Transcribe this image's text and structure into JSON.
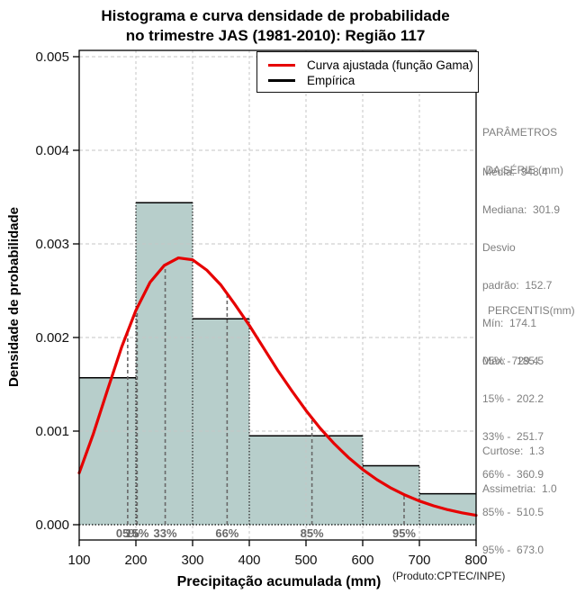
{
  "title": {
    "line1": "Histograma e curva densidade de probabilidade",
    "line2": "no trimestre JAS (1981-2010): Região 117"
  },
  "axes": {
    "ylabel": "Densidade de probabilidade",
    "xlabel": "Precipitação acumulada (mm)",
    "product_note": "(Produto:CPTEC/INPE)"
  },
  "legend": {
    "items": [
      {
        "label": "Curva ajustada (função Gama)",
        "color": "#e60000"
      },
      {
        "label": "Empírica",
        "color": "#000000"
      }
    ]
  },
  "sidebar": {
    "params_title_line1": "PARÂMETROS",
    "params_title_line2": " DA SÉRIE (mm)",
    "params_lines": [
      "Média:  348.4",
      "Mediana:  301.9",
      "Desvio",
      "padrão:  152.7",
      "Mín:  174.1",
      "Máx:  729.4"
    ],
    "percentis_title": "PERCENTIS(mm)",
    "percentile_lines": [
      "05% -  185.5",
      "15% -  202.2",
      "33% -  251.7",
      "66% -  360.9",
      "85% -  510.5",
      "95% -  673.0"
    ],
    "curtose_line": "Curtose:  1.3",
    "assimetria_line": "Assimetria:  1.0"
  },
  "chart_data": {
    "type": "bar",
    "subtype": "histogram-with-density-curve",
    "title": "Histograma e curva densidade de probabilidade no trimestre JAS (1981-2010): Região 117",
    "xlabel": "Precipitação acumulada (mm)",
    "ylabel": "Densidade de probabilidade",
    "xlim": [
      100,
      800
    ],
    "ylim": [
      0,
      0.005
    ],
    "grid": true,
    "legend_position": "top-right",
    "x_ticks": [
      100,
      200,
      300,
      400,
      500,
      600,
      700,
      800
    ],
    "y_ticks": [
      0.0,
      0.001,
      0.002,
      0.003,
      0.004,
      0.005
    ],
    "y_tick_labels": [
      "0.000",
      "0.001",
      "0.002",
      "0.003",
      "0.004",
      "0.005"
    ],
    "bar_fill": "#b7cecb",
    "curve_color": "#e60000",
    "grid_color": "#c6c6c6",
    "percentile_color": "#696969",
    "bars": [
      {
        "x0": 100,
        "x1": 200,
        "density": 0.00157
      },
      {
        "x0": 200,
        "x1": 300,
        "density": 0.00344
      },
      {
        "x0": 300,
        "x1": 400,
        "density": 0.0022
      },
      {
        "x0": 400,
        "x1": 600,
        "density": 0.00095
      },
      {
        "x0": 600,
        "x1": 700,
        "density": 0.00063
      },
      {
        "x0": 700,
        "x1": 800,
        "density": 0.00033
      }
    ],
    "series": [
      {
        "name": "Curva ajustada (função Gama)",
        "type": "line",
        "points": [
          [
            100,
            0.000553
          ],
          [
            125,
            0.000972
          ],
          [
            150,
            0.001441
          ],
          [
            175,
            0.0019
          ],
          [
            200,
            0.00229
          ],
          [
            225,
            0.00259
          ],
          [
            250,
            0.00277
          ],
          [
            275,
            0.00285
          ],
          [
            300,
            0.00283
          ],
          [
            325,
            0.00272
          ],
          [
            350,
            0.00256
          ],
          [
            375,
            0.00235
          ],
          [
            400,
            0.00213
          ],
          [
            425,
            0.00189
          ],
          [
            450,
            0.00165
          ],
          [
            475,
            0.00143
          ],
          [
            500,
            0.00122
          ],
          [
            525,
            0.00103
          ],
          [
            550,
            0.000864
          ],
          [
            575,
            0.000717
          ],
          [
            600,
            0.00059
          ],
          [
            625,
            0.000482
          ],
          [
            650,
            0.000391
          ],
          [
            675,
            0.000316
          ],
          [
            700,
            0.000253
          ],
          [
            725,
            0.000202
          ],
          [
            750,
            0.00016
          ],
          [
            775,
            0.000127
          ],
          [
            800,
            0.0001
          ]
        ]
      }
    ],
    "percentile_markers": [
      {
        "label": "05%",
        "x": 185.5,
        "top": 0.00207
      },
      {
        "label": "15%",
        "x": 202.2,
        "top": 0.00232
      },
      {
        "label": "33%",
        "x": 251.7,
        "top": 0.00278
      },
      {
        "label": "66%",
        "x": 360.9,
        "top": 0.00247
      },
      {
        "label": "85%",
        "x": 510.5,
        "top": 0.00114
      },
      {
        "label": "95%",
        "x": 673.0,
        "top": 0.00032
      }
    ],
    "stats": {
      "media": 348.4,
      "mediana": 301.9,
      "desvio_padrao": 152.7,
      "min": 174.1,
      "max": 729.4,
      "curtose": 1.3,
      "assimetria": 1.0
    }
  }
}
